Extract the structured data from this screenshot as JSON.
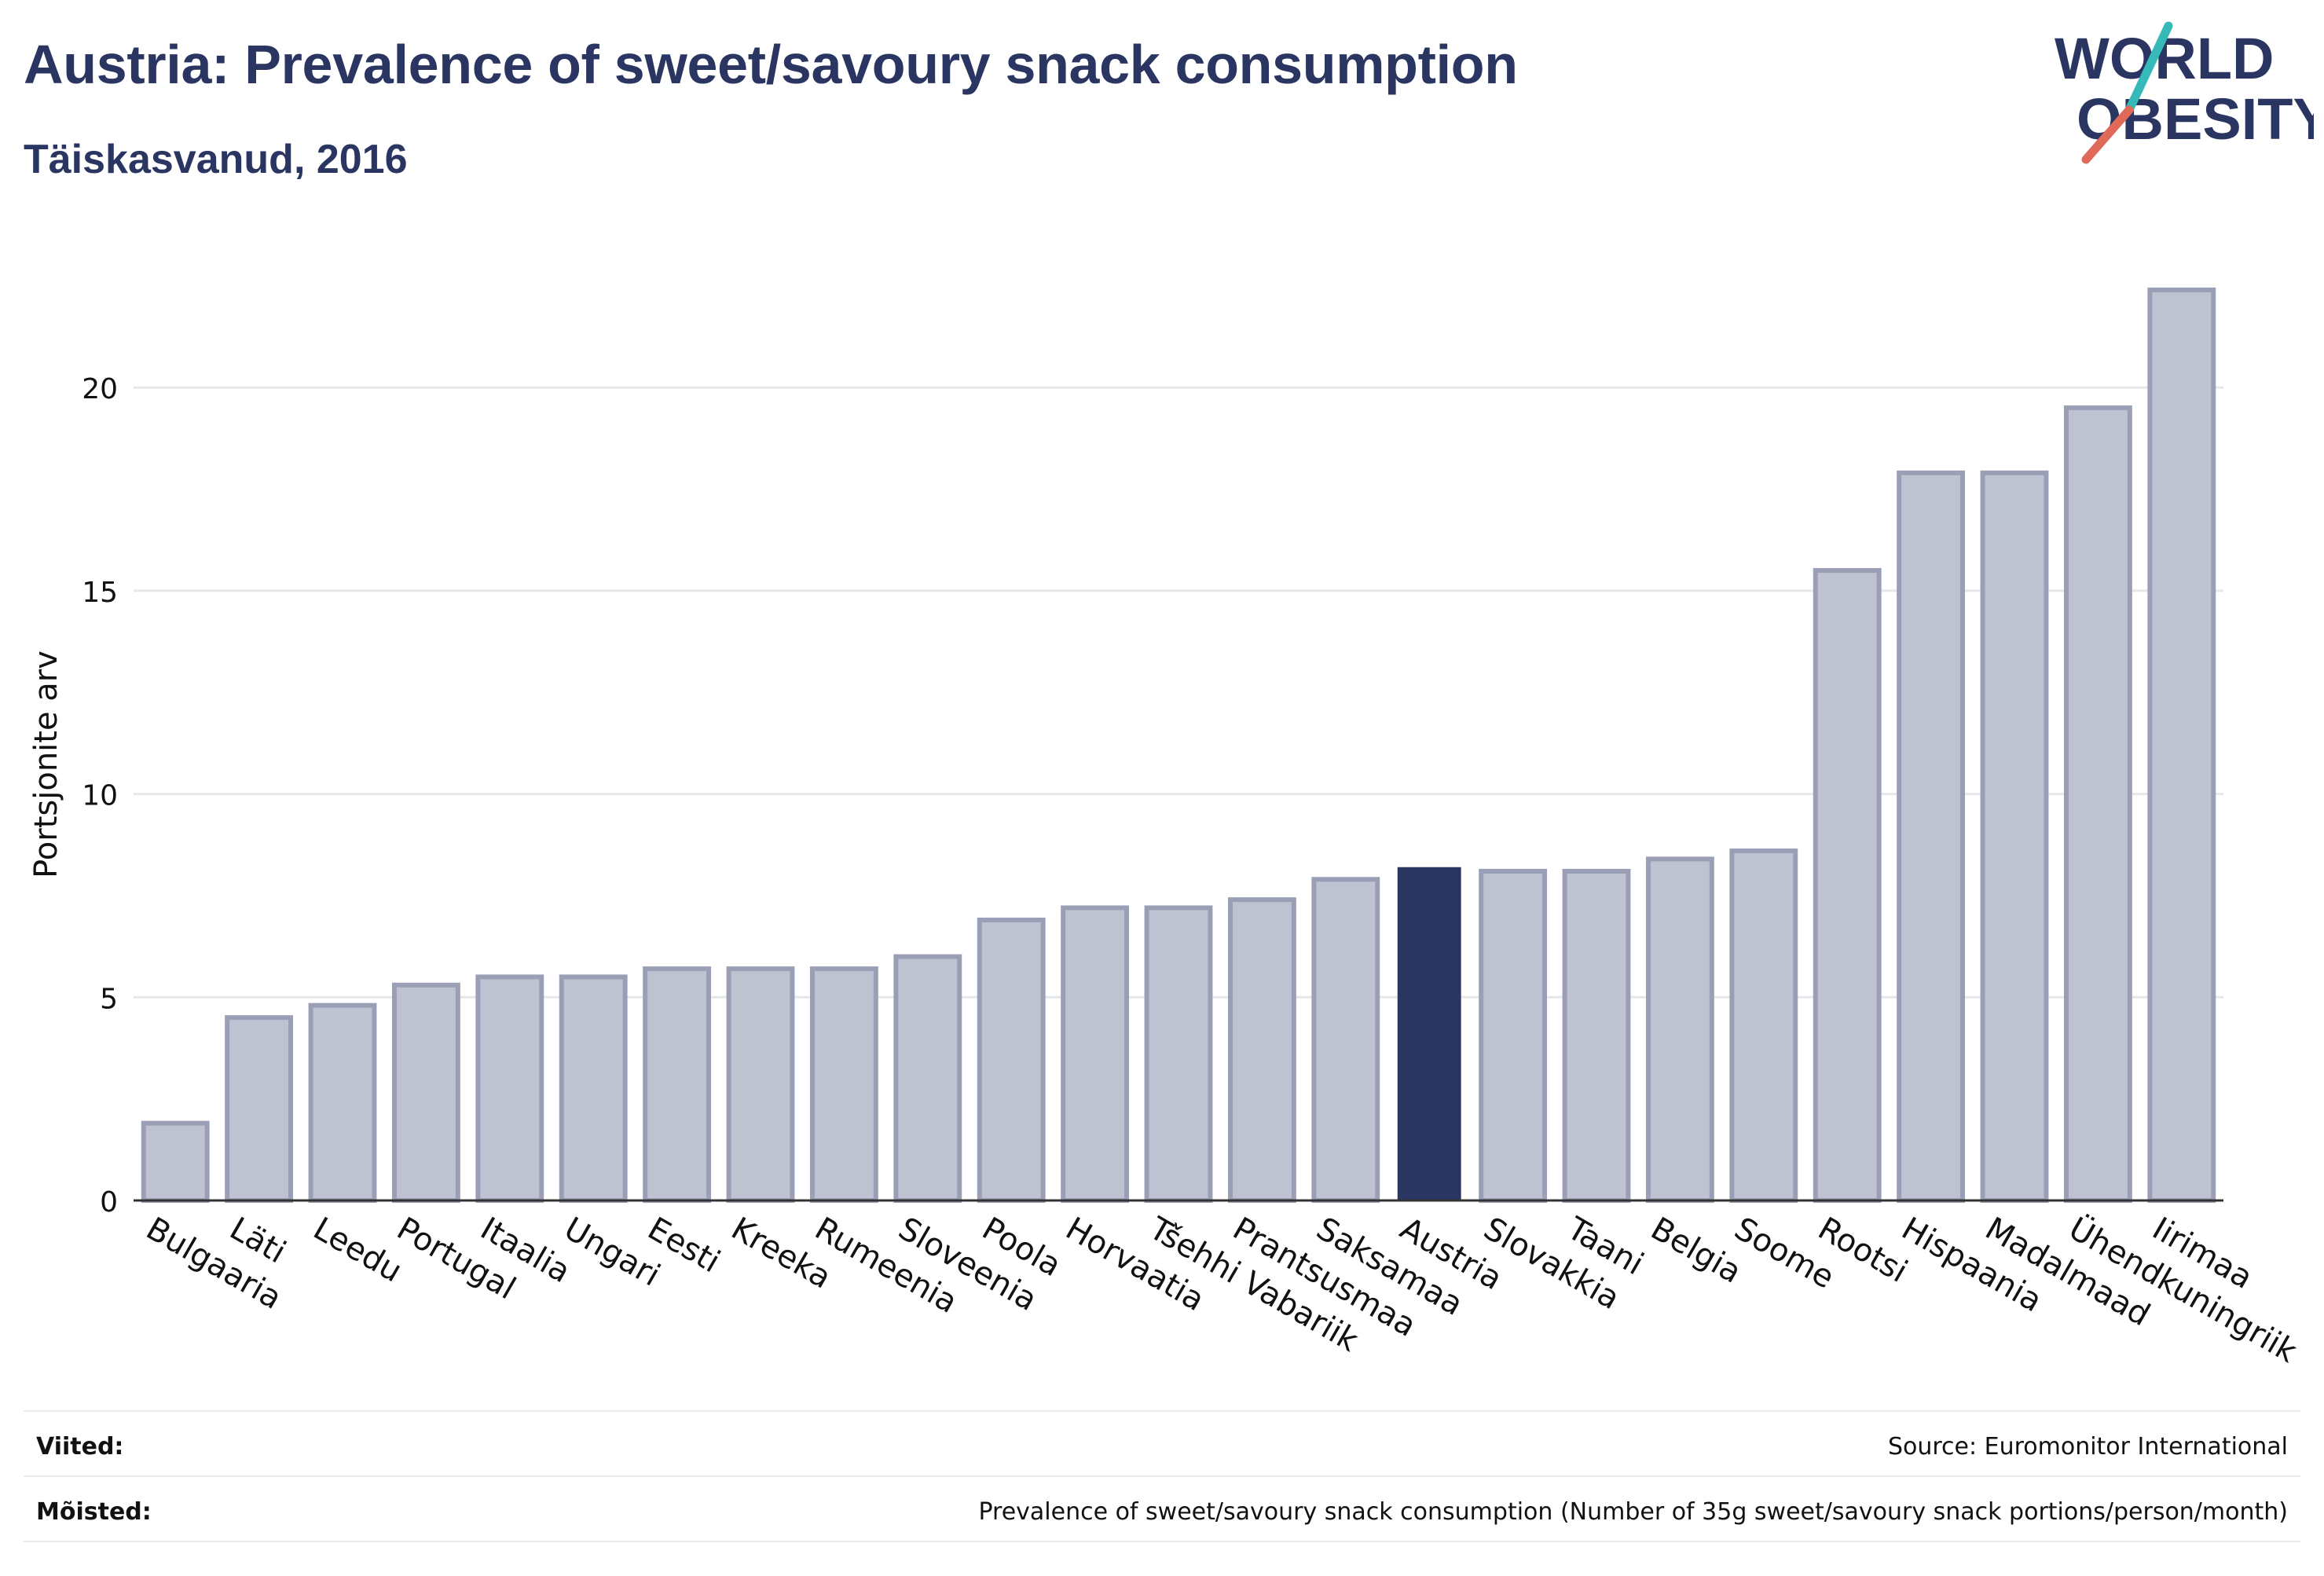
{
  "header": {
    "title": "Austria: Prevalence of sweet/savoury snack consumption",
    "subtitle": "Täiskasvanud, 2016"
  },
  "logo": {
    "line1": "WORLD",
    "line2": "OBESITY"
  },
  "colors": {
    "highlight": "#2a3561",
    "bar_fill": "#bfc2d1",
    "bar_stroke": "#9a9fb6",
    "text": "#2a3561",
    "grid": "#e6e7ea",
    "accent_teal": "#35b9b9",
    "accent_red": "#e06a5a"
  },
  "chart_data": {
    "type": "bar",
    "title": "Austria: Prevalence of sweet/savoury snack consumption",
    "subtitle": "Täiskasvanud, 2016",
    "xlabel": "",
    "ylabel": "Portsjonite arv",
    "ylim": [
      0,
      23
    ],
    "yticks": [
      0,
      5,
      10,
      15,
      20
    ],
    "grid": true,
    "highlight": "Austria",
    "categories": [
      "Bulgaaria",
      "Läti",
      "Leedu",
      "Portugal",
      "Itaalia",
      "Ungari",
      "Eesti",
      "Kreeka",
      "Rumeenia",
      "Sloveenia",
      "Poola",
      "Horvaatia",
      "Tšehhi Vabariik",
      "Prantsusmaa",
      "Saksamaa",
      "Austria",
      "Slovakkia",
      "Taani",
      "Belgia",
      "Soome",
      "Rootsi",
      "Hispaania",
      "Madalmaad",
      "Ühendkuningriik",
      "Iirimaa"
    ],
    "values": [
      1.9,
      4.5,
      4.8,
      5.3,
      5.5,
      5.5,
      5.7,
      5.7,
      5.7,
      6.0,
      6.9,
      7.2,
      7.2,
      7.4,
      7.9,
      8.2,
      8.1,
      8.1,
      8.4,
      8.6,
      15.5,
      17.9,
      17.9,
      19.5,
      22.4
    ]
  },
  "footer": {
    "refs_label": "Viited:",
    "refs_value": "Source: Euromonitor International",
    "defs_label": "Mõisted:",
    "defs_value": "Prevalence of sweet/savoury snack consumption (Number of 35g sweet/savoury snack portions/person/month)"
  }
}
